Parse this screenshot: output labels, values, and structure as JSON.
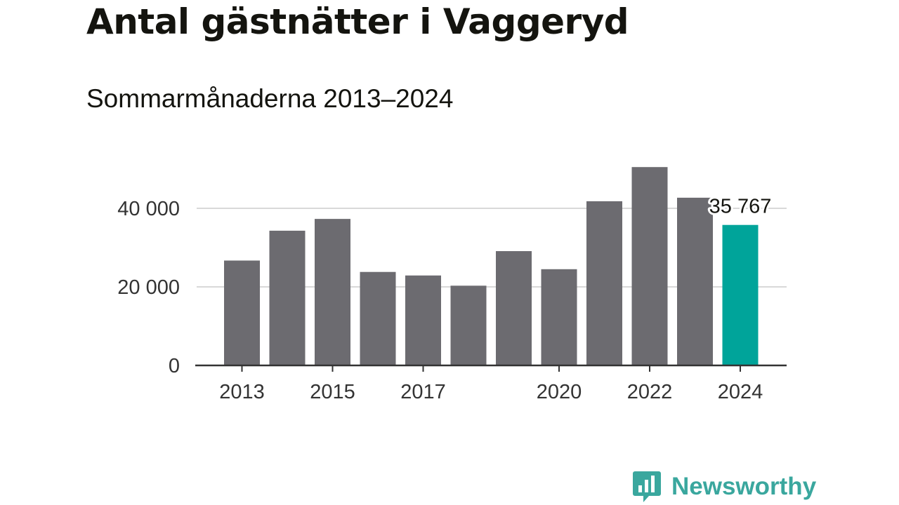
{
  "header": {
    "title": "Antal gästnätter i Vaggeryd",
    "subtitle": "Sommarmånaderna 2013–2024"
  },
  "brand": {
    "name": "Newsworthy",
    "icon": "bar-chart-speech-bubble-icon",
    "color": "#3aa79e"
  },
  "colors": {
    "bar": "#6c6b70",
    "highlight": "#00a49a",
    "grid": "#d9d9d9",
    "axis": "#333333"
  },
  "chart_data": {
    "type": "bar",
    "title": "Antal gästnätter i Vaggeryd",
    "subtitle": "Sommarmånaderna 2013–2024",
    "categories": [
      "2013",
      "2014",
      "2015",
      "2016",
      "2017",
      "2018",
      "2019",
      "2020",
      "2021",
      "2022",
      "2023",
      "2024"
    ],
    "values": [
      26700,
      34300,
      37300,
      23800,
      22900,
      20300,
      29100,
      24500,
      41800,
      50500,
      42700,
      35767
    ],
    "x_tick_labels": [
      "2013",
      "2015",
      "2017",
      "2020",
      "2022",
      "2024"
    ],
    "y_ticks": [
      0,
      20000,
      40000
    ],
    "y_tick_labels": [
      "0",
      "20 000",
      "40 000"
    ],
    "ylim": [
      0,
      51000
    ],
    "xlabel": "",
    "ylabel": "",
    "grid": true,
    "highlight_category": "2024",
    "annotation": {
      "category": "2024",
      "text": "35 767"
    }
  }
}
